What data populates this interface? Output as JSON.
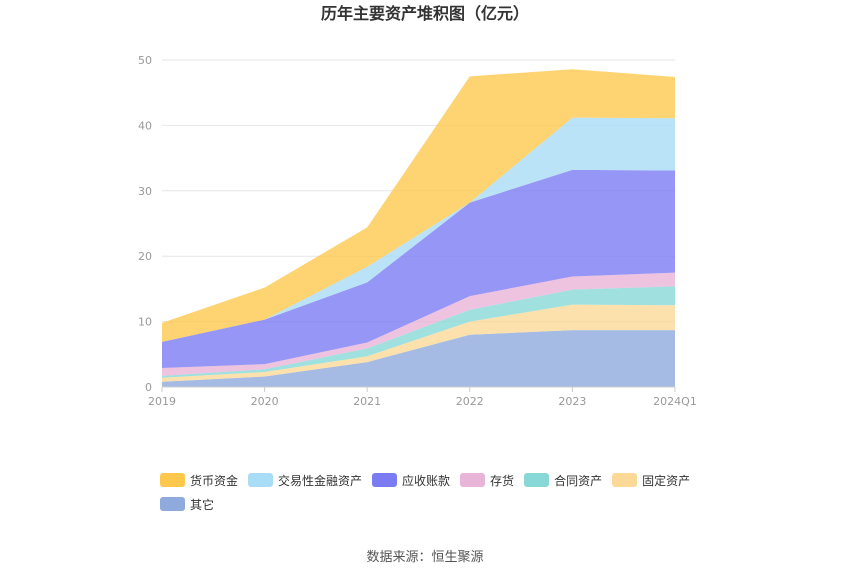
{
  "chart_data": {
    "type": "area",
    "stacked": true,
    "title": "历年主要资产堆积图（亿元）",
    "categories": [
      "2019",
      "2020",
      "2021",
      "2022",
      "2023",
      "2024Q1"
    ],
    "ylim": [
      0,
      50
    ],
    "yticks": [
      0,
      10,
      20,
      30,
      40,
      50
    ],
    "grid": true,
    "legend_position": "bottom",
    "series": [
      {
        "name": "其它",
        "color": "#8faadc",
        "values": [
          0.8,
          1.6,
          3.8,
          8.0,
          8.7,
          8.7
        ]
      },
      {
        "name": "固定资产",
        "color": "#fdd998",
        "values": [
          0.6,
          0.7,
          0.9,
          2.0,
          3.9,
          3.8
        ]
      },
      {
        "name": "合同资产",
        "color": "#88d8d7",
        "values": [
          0.3,
          0.4,
          1.2,
          1.8,
          2.3,
          2.9
        ]
      },
      {
        "name": "存货",
        "color": "#e8b4d8",
        "values": [
          1.2,
          0.8,
          0.9,
          2.1,
          2.0,
          2.1
        ]
      },
      {
        "name": "应收账款",
        "color": "#7b7cf2",
        "values": [
          4.0,
          6.8,
          9.2,
          14.3,
          16.3,
          15.6
        ]
      },
      {
        "name": "交易性金融资产",
        "color": "#a9dcf6",
        "values": [
          0.0,
          0.0,
          2.4,
          0.0,
          8.0,
          8.0
        ]
      },
      {
        "name": "货币资金",
        "color": "#fec84d",
        "values": [
          2.9,
          4.9,
          6.0,
          19.3,
          7.4,
          6.3
        ]
      }
    ]
  },
  "legend_order": [
    "货币资金",
    "交易性金融资产",
    "应收账款",
    "存货",
    "合同资产",
    "固定资产",
    "其它"
  ],
  "footer": {
    "source": "数据来源：恒生聚源"
  }
}
